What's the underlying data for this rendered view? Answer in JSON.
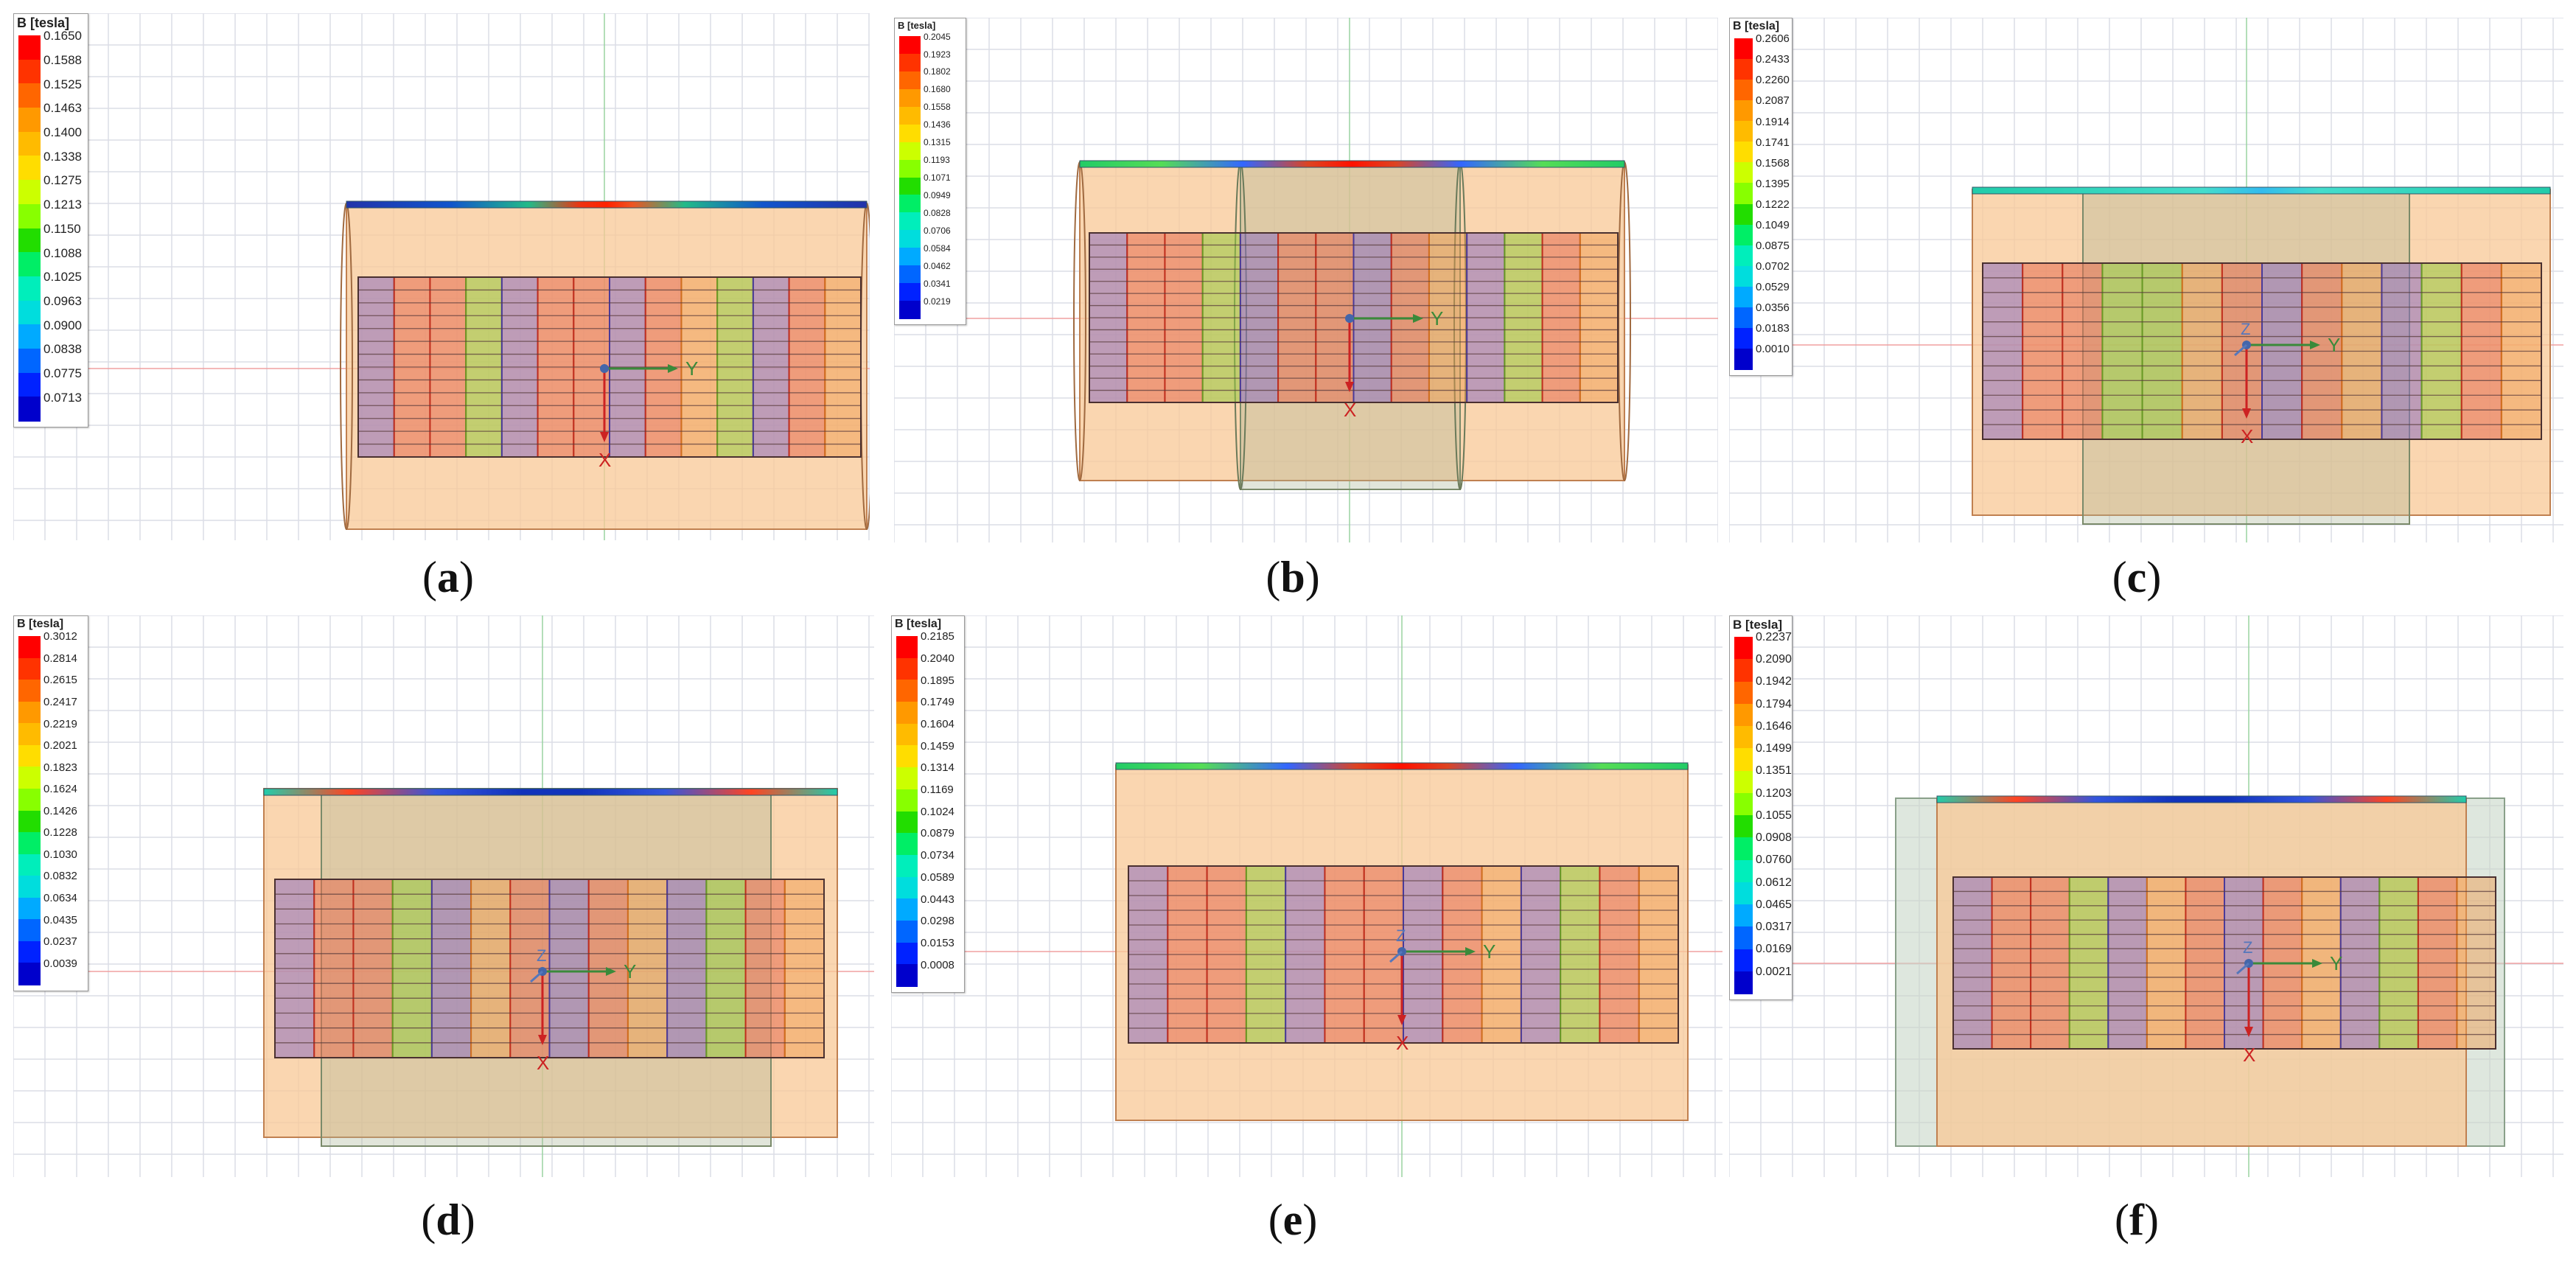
{
  "legend_title": "B [tesla]",
  "legend_colors": [
    "#ff0000",
    "#ff3300",
    "#ff6600",
    "#ff9900",
    "#ffbb00",
    "#ffdd00",
    "#ccff00",
    "#88ff00",
    "#22dd00",
    "#00ee66",
    "#00eebb",
    "#00dddd",
    "#00aaff",
    "#0066ff",
    "#0022ff",
    "#0000cc"
  ],
  "panels": [
    {
      "id": "a",
      "caption_letter": "a",
      "legend_values": [
        "0.1650",
        "0.1588",
        "0.1525",
        "0.1463",
        "0.1400",
        "0.1338",
        "0.1275",
        "0.1213",
        "0.1150",
        "0.1088",
        "0.1025",
        "0.0963",
        "0.0900",
        "0.0838",
        "0.0775",
        "0.0713"
      ],
      "axis_labels": {
        "x": "X",
        "y": "Y"
      }
    },
    {
      "id": "b",
      "caption_letter": "b",
      "legend_values": [
        "0.2045",
        "0.1923",
        "0.1802",
        "0.1680",
        "0.1558",
        "0.1436",
        "0.1315",
        "0.1193",
        "0.1071",
        "0.0949",
        "0.0828",
        "0.0706",
        "0.0584",
        "0.0462",
        "0.0341",
        "0.0219"
      ],
      "axis_labels": {
        "x": "X",
        "y": "Y"
      }
    },
    {
      "id": "c",
      "caption_letter": "c",
      "legend_values": [
        "0.2606",
        "0.2433",
        "0.2260",
        "0.2087",
        "0.1914",
        "0.1741",
        "0.1568",
        "0.1395",
        "0.1222",
        "0.1049",
        "0.0875",
        "0.0702",
        "0.0529",
        "0.0356",
        "0.0183",
        "0.0010"
      ],
      "axis_labels": {
        "x": "X",
        "y": "Y",
        "z": "Z"
      }
    },
    {
      "id": "d",
      "caption_letter": "d",
      "legend_values": [
        "0.3012",
        "0.2814",
        "0.2615",
        "0.2417",
        "0.2219",
        "0.2021",
        "0.1823",
        "0.1624",
        "0.1426",
        "0.1228",
        "0.1030",
        "0.0832",
        "0.0634",
        "0.0435",
        "0.0237",
        "0.0039"
      ],
      "axis_labels": {
        "x": "X",
        "y": "Y",
        "z": "Z"
      }
    },
    {
      "id": "e",
      "caption_letter": "e",
      "legend_values": [
        "0.2185",
        "0.2040",
        "0.1895",
        "0.1749",
        "0.1604",
        "0.1459",
        "0.1314",
        "0.1169",
        "0.1024",
        "0.0879",
        "0.0734",
        "0.0589",
        "0.0443",
        "0.0298",
        "0.0153",
        "0.0008"
      ],
      "axis_labels": {
        "x": "X",
        "y": "Y",
        "z": "Z"
      }
    },
    {
      "id": "f",
      "caption_letter": "f",
      "legend_values": [
        "0.2237",
        "0.2090",
        "0.1942",
        "0.1794",
        "0.1646",
        "0.1499",
        "0.1351",
        "0.1203",
        "0.1055",
        "0.0908",
        "0.0760",
        "0.0612",
        "0.0465",
        "0.0317",
        "0.0169",
        "0.0021"
      ],
      "axis_labels": {
        "x": "X",
        "y": "Y",
        "z": "Z"
      }
    }
  ]
}
